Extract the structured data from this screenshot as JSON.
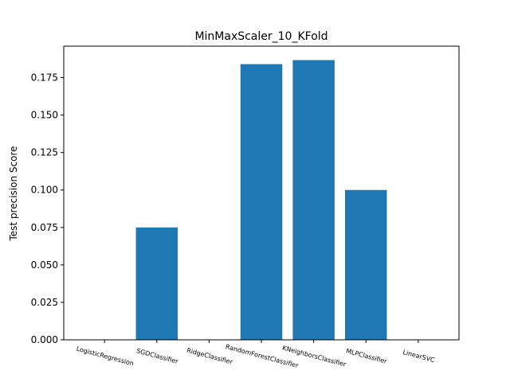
{
  "chart_data": {
    "type": "bar",
    "title": "MinMaxScaler_10_KFold",
    "xlabel": "",
    "ylabel": "Test precision Score",
    "categories": [
      "LogisticRegression",
      "SGDClassifier",
      "RidgeClassifier",
      "RandomForestClassifier",
      "KNeighborsClassifier",
      "MLPClassifier",
      "LinearSVC"
    ],
    "values": [
      0.0,
      0.075,
      0.0,
      0.184,
      0.1867,
      0.1,
      0.0
    ],
    "yticks": [
      "0.000",
      "0.025",
      "0.050",
      "0.075",
      "0.100",
      "0.125",
      "0.150",
      "0.175"
    ],
    "ylim": [
      0,
      0.196
    ],
    "bar_color": "#1f77b4",
    "grid": false,
    "legend": "none"
  }
}
